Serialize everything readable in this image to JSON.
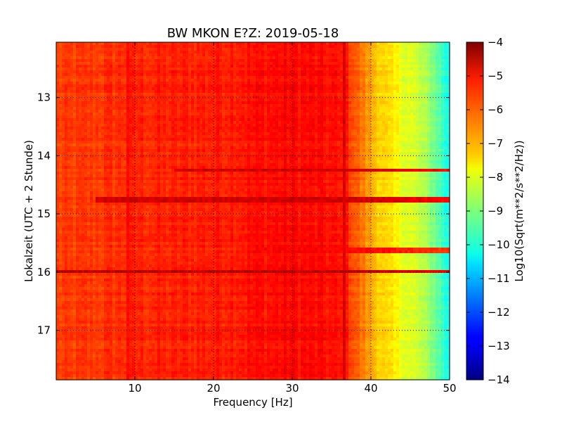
{
  "chart_data": {
    "type": "heatmap",
    "title": "BW MKON E?Z: 2019-05-18",
    "xlabel": "Frequency [Hz]",
    "ylabel": "Lokalzeit (UTC + 2 Stunde)",
    "xlim": [
      0,
      50
    ],
    "ylim": [
      12.05,
      17.85
    ],
    "y_inverted": true,
    "grid": true,
    "grid_style": "dotted",
    "x_ticks": [
      10,
      20,
      30,
      40,
      50
    ],
    "x_tick_labels": [
      "10",
      "20",
      "30",
      "40",
      "50"
    ],
    "y_ticks": [
      13,
      14,
      15,
      16,
      17
    ],
    "y_tick_labels": [
      "13",
      "14",
      "15",
      "16",
      "17"
    ],
    "colormap": "jet",
    "colorbar": {
      "label": "Log10(Sqrt(m**2/s**2/Hz))",
      "range": [
        -14,
        -4
      ],
      "ticks": [
        -4,
        -5,
        -6,
        -7,
        -8,
        -9,
        -10,
        -11,
        -12,
        -13,
        -14
      ],
      "tick_labels": [
        "−4",
        "−5",
        "−6",
        "−7",
        "−8",
        "−9",
        "−10",
        "−11",
        "−12",
        "−13",
        "−14"
      ]
    },
    "frequency_profile": {
      "x": [
        0,
        5,
        10,
        15,
        20,
        25,
        30,
        35,
        37,
        38,
        40,
        42,
        44,
        46,
        48,
        50
      ],
      "y": [
        -5.9,
        -5.8,
        -5.6,
        -5.6,
        -5.5,
        -5.4,
        -5.3,
        -5.4,
        -5.6,
        -6.1,
        -6.9,
        -7.5,
        -7.9,
        -8.3,
        -9.0,
        -10.2
      ]
    },
    "features": [
      {
        "kind": "horizontal_band",
        "time": 14.25,
        "freq_range": [
          15,
          50
        ],
        "value": -4.8
      },
      {
        "kind": "horizontal_band",
        "time": 14.75,
        "freq_range": [
          5,
          50
        ],
        "value": -4.8
      },
      {
        "kind": "horizontal_band",
        "time": 15.63,
        "freq_range": [
          25,
          50
        ],
        "value": -5.3
      },
      {
        "kind": "horizontal_band",
        "time": 15.98,
        "freq_range": [
          0,
          50
        ],
        "value": -4.7
      },
      {
        "kind": "vertical_line",
        "freq": 36.5,
        "value": -4.9
      },
      {
        "kind": "vertical_line",
        "freq": 9.0,
        "value": -5.3
      }
    ]
  }
}
